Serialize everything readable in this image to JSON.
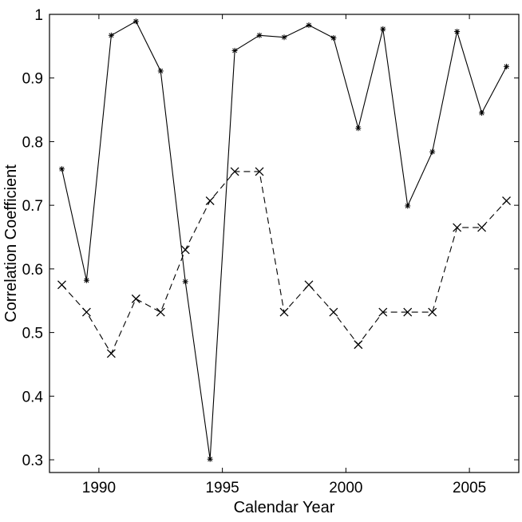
{
  "chart_data": {
    "type": "line",
    "title": "",
    "xlabel": "Calendar Year",
    "ylabel": "Correlation Coefficient",
    "xlim": [
      1988,
      2007
    ],
    "ylim": [
      0.28,
      1.0
    ],
    "grid": false,
    "legend": "none",
    "x_ticks": [
      1990,
      1995,
      2000,
      2005
    ],
    "x_tick_labels": [
      "1990",
      "1995",
      "2000",
      "2005"
    ],
    "y_ticks": [
      0.3,
      0.4,
      0.5,
      0.6,
      0.7,
      0.8,
      0.9,
      1.0
    ],
    "y_tick_labels": [
      "0.3",
      "0.4",
      "0.5",
      "0.6",
      "0.7",
      "0.8",
      "0.9",
      "1"
    ],
    "colors": {
      "axes": "#000000",
      "series": "#000000"
    },
    "series": [
      {
        "line_style": "solid",
        "marker": "star",
        "x": [
          1988.5,
          1989.5,
          1990.5,
          1991.5,
          1992.5,
          1993.5,
          1994.5,
          1995.5,
          1996.5,
          1997.5,
          1998.5,
          1999.5,
          2000.5,
          2001.5,
          2002.5,
          2003.5,
          2004.5,
          2005.5,
          2006.5
        ],
        "y": [
          0.757,
          0.582,
          0.967,
          0.989,
          0.911,
          0.58,
          0.301,
          0.943,
          0.967,
          0.964,
          0.983,
          0.963,
          0.821,
          0.977,
          0.699,
          0.784,
          0.973,
          0.845,
          0.918
        ]
      },
      {
        "line_style": "dashed",
        "marker": "x",
        "x": [
          1988.5,
          1989.5,
          1990.5,
          1991.5,
          1992.5,
          1993.5,
          1994.5,
          1995.5,
          1996.5,
          1997.5,
          1998.5,
          1999.5,
          2000.5,
          2001.5,
          2002.5,
          2003.5,
          2004.5,
          2005.5,
          2006.5
        ],
        "y": [
          0.575,
          0.532,
          0.467,
          0.553,
          0.532,
          0.63,
          0.707,
          0.753,
          0.753,
          0.532,
          0.575,
          0.532,
          0.481,
          0.532,
          0.532,
          0.532,
          0.665,
          0.665,
          0.707
        ]
      }
    ]
  }
}
